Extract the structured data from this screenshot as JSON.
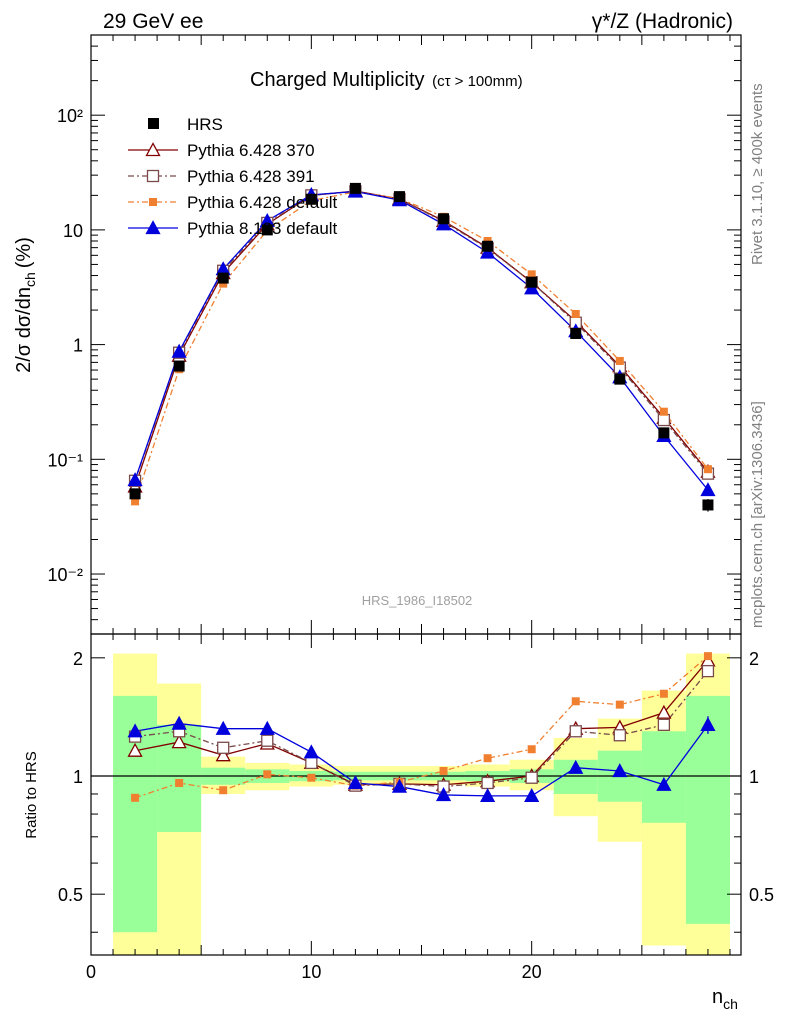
{
  "header": {
    "energy_label": "29 GeV ee",
    "process_label": "γ*/Z (Hadronic)"
  },
  "side_text": {
    "rivet": "Rivet 3.1.10, ≥ 400k events",
    "mcplots": "mcplots.cern.ch [arXiv:1306.3436]"
  },
  "chart_data": {
    "type": "line",
    "title": "Charged Multiplicity",
    "subtitle": "(cτ > 100mm)",
    "watermark": "HRS_1986_I18502",
    "ylabel": "2/σ dσ/dn",
    "ylabel_sub": "ch",
    "ylabel_unit": "(%)",
    "xlabel": "n",
    "xlabel_sub": "ch",
    "ratio_ylabel": "Ratio to HRS",
    "yscale": "log",
    "ylim": [
      0.003,
      500
    ],
    "xlim": [
      0,
      29.5
    ],
    "ratio_ylim": [
      0.35,
      2.3
    ],
    "x_ticks": [
      "0",
      "10",
      "20"
    ],
    "y_ticks": [
      "10⁻²",
      "10⁻¹",
      "1",
      "10",
      "10²"
    ],
    "ratio_ticks": [
      "0.5",
      "1",
      "2"
    ],
    "legend_position": "top-left",
    "x": [
      2,
      4,
      6,
      8,
      10,
      12,
      14,
      16,
      18,
      20,
      22,
      24,
      26,
      28
    ],
    "data": {
      "name": "HRS",
      "color": "#000000",
      "values": [
        0.05,
        0.65,
        3.8,
        10.0,
        18.5,
        23.0,
        19.5,
        12.5,
        7.2,
        3.5,
        1.25,
        0.5,
        0.17,
        0.04
      ],
      "errors": [
        0.004,
        0.04,
        0.15,
        0.3,
        0.5,
        0.6,
        0.5,
        0.35,
        0.2,
        0.12,
        0.06,
        0.03,
        0.012,
        0.005
      ]
    },
    "series": [
      {
        "name": "Pythia 6.428 370",
        "color": "#800000",
        "marker": "triangle-open",
        "dash": "solid",
        "values": [
          0.058,
          0.8,
          4.2,
          11.2,
          20.0,
          21.8,
          18.6,
          12.0,
          7.0,
          3.5,
          1.6,
          0.65,
          0.23,
          0.078
        ]
      },
      {
        "name": "Pythia 6.428 391",
        "color": "#7a4a4a",
        "marker": "square-open",
        "dash": "dashdot",
        "values": [
          0.065,
          0.85,
          4.4,
          11.5,
          20.0,
          21.7,
          18.6,
          11.8,
          6.9,
          3.5,
          1.55,
          0.63,
          0.22,
          0.075
        ]
      },
      {
        "name": "Pythia 6.428 default",
        "color": "#f08030",
        "marker": "square-filled",
        "dash": "dashdot",
        "values": [
          0.043,
          0.61,
          3.4,
          9.9,
          18.0,
          21.5,
          18.8,
          13.0,
          8.0,
          4.1,
          1.85,
          0.72,
          0.26,
          0.082
        ]
      },
      {
        "name": "Pythia 8.183 default",
        "color": "#0000dd",
        "marker": "triangle-filled",
        "dash": "solid",
        "values": [
          0.066,
          0.87,
          4.55,
          12.0,
          20.2,
          21.6,
          18.2,
          11.2,
          6.35,
          3.1,
          1.31,
          0.52,
          0.16,
          0.054
        ]
      }
    ],
    "ratio_series": [
      {
        "name": "Pythia 6.428 370",
        "values": [
          1.16,
          1.22,
          1.13,
          1.21,
          1.08,
          0.95,
          0.955,
          0.95,
          0.97,
          1.0,
          1.32,
          1.33,
          1.45,
          1.97
        ]
      },
      {
        "name": "Pythia 6.428 391",
        "values": [
          1.26,
          1.3,
          1.18,
          1.23,
          1.08,
          0.945,
          0.955,
          0.94,
          0.96,
          0.99,
          1.3,
          1.27,
          1.35,
          1.85
        ]
      },
      {
        "name": "Pythia 6.428 default",
        "values": [
          0.88,
          0.96,
          0.92,
          1.01,
          0.99,
          0.945,
          0.965,
          1.03,
          1.11,
          1.17,
          1.55,
          1.52,
          1.62,
          2.02
        ]
      },
      {
        "name": "Pythia 8.183 default",
        "values": [
          1.3,
          1.36,
          1.32,
          1.32,
          1.15,
          0.96,
          0.94,
          0.895,
          0.89,
          0.89,
          1.05,
          1.03,
          0.95,
          1.35
        ]
      }
    ],
    "ratio_series_errors": [
      0.04,
      0.025,
      0.0,
      0.0,
      0.0,
      0.0,
      0.0,
      0.0,
      0.0,
      0.0,
      0.0,
      0.0,
      0.03,
      0.07
    ],
    "ratio_bands": {
      "edges": [
        1,
        3,
        5,
        7,
        9,
        11,
        13,
        15,
        17,
        19,
        21,
        23,
        25,
        27,
        29
      ],
      "green": [
        [
          0.4,
          1.6
        ],
        [
          0.72,
          1.35
        ],
        [
          0.95,
          1.05
        ],
        [
          0.96,
          1.04
        ],
        [
          0.97,
          1.03
        ],
        [
          0.975,
          1.025
        ],
        [
          0.975,
          1.025
        ],
        [
          0.975,
          1.025
        ],
        [
          0.97,
          1.03
        ],
        [
          0.96,
          1.04
        ],
        [
          0.9,
          1.1
        ],
        [
          0.86,
          1.16
        ],
        [
          0.76,
          1.3
        ],
        [
          0.42,
          1.6
        ]
      ],
      "yellow": [
        [
          0.35,
          2.05
        ],
        [
          0.35,
          1.72
        ],
        [
          0.9,
          1.12
        ],
        [
          0.92,
          1.08
        ],
        [
          0.94,
          1.07
        ],
        [
          0.95,
          1.06
        ],
        [
          0.95,
          1.06
        ],
        [
          0.95,
          1.06
        ],
        [
          0.94,
          1.07
        ],
        [
          0.92,
          1.1
        ],
        [
          0.79,
          1.25
        ],
        [
          0.68,
          1.4
        ],
        [
          0.37,
          1.65
        ],
        [
          0.35,
          2.05
        ]
      ]
    }
  }
}
